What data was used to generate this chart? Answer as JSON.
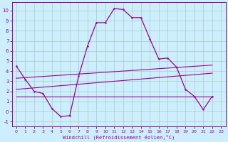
{
  "xlabel": "Windchill (Refroidissement éolien,°C)",
  "bg_color": "#cceeff",
  "line_color": "#990099",
  "grid_color": "#aaccbb",
  "xlim": [
    -0.5,
    23.5
  ],
  "ylim": [
    -1.5,
    10.8
  ],
  "xticks": [
    0,
    1,
    2,
    3,
    4,
    5,
    6,
    7,
    8,
    9,
    10,
    11,
    12,
    13,
    14,
    15,
    16,
    17,
    18,
    19,
    20,
    21,
    22,
    23
  ],
  "yticks": [
    -1,
    0,
    1,
    2,
    3,
    4,
    5,
    6,
    7,
    8,
    9,
    10
  ],
  "line1_x": [
    0,
    1,
    2,
    3,
    4,
    5,
    6,
    7,
    8,
    9,
    10,
    11,
    12,
    13,
    14,
    15,
    16,
    17,
    18,
    19,
    20,
    21,
    22
  ],
  "line1_y": [
    4.5,
    3.2,
    2.0,
    1.8,
    0.3,
    -0.5,
    -0.4,
    3.5,
    6.5,
    8.8,
    8.8,
    10.2,
    10.1,
    9.3,
    9.3,
    7.2,
    5.2,
    5.3,
    4.4,
    2.2,
    1.5,
    0.2,
    1.5
  ],
  "trend1_x": [
    0,
    22
  ],
  "trend1_y": [
    3.3,
    4.6
  ],
  "trend2_x": [
    0,
    22
  ],
  "trend2_y": [
    2.2,
    3.8
  ],
  "trend3_x": [
    0,
    15,
    22
  ],
  "trend3_y": [
    1.5,
    1.5,
    1.5
  ]
}
